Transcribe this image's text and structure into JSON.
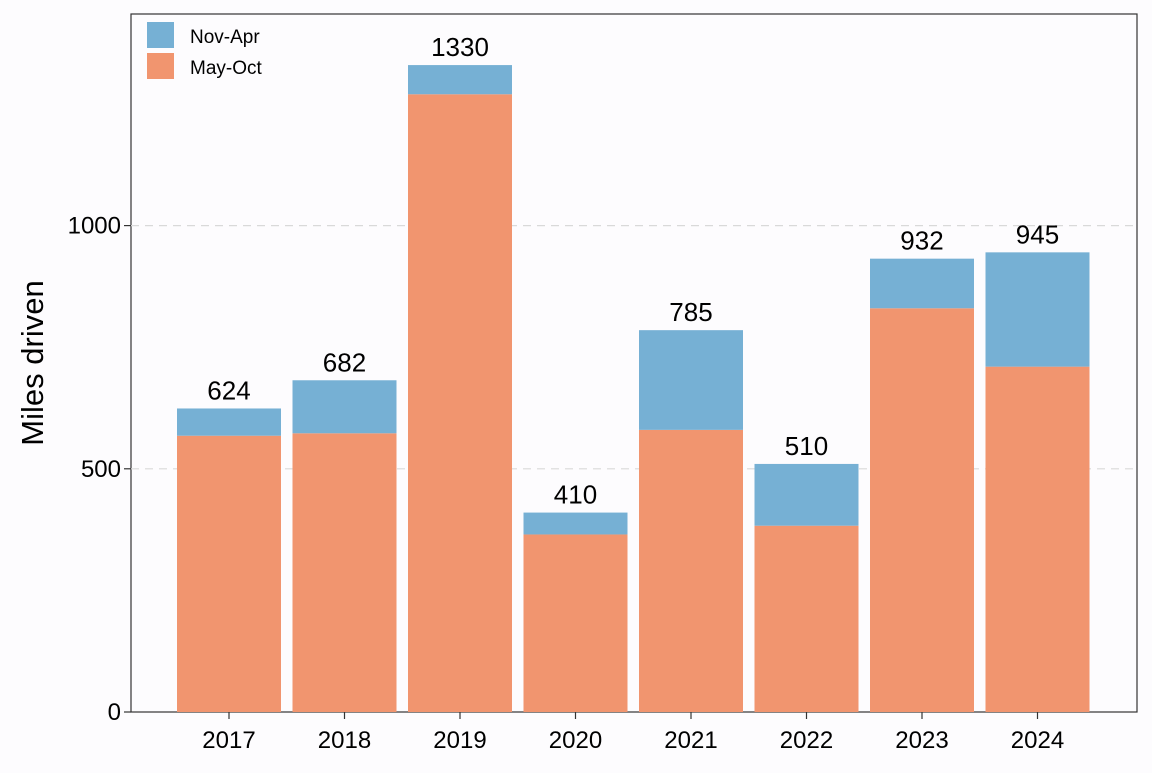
{
  "chart_data": {
    "type": "bar",
    "stacked": true,
    "categories": [
      "2017",
      "2018",
      "2019",
      "2020",
      "2021",
      "2022",
      "2023",
      "2024"
    ],
    "series": [
      {
        "name": "May-Oct",
        "color": "#f1956f",
        "values": [
          568,
          573,
          1270,
          365,
          580,
          383,
          830,
          710
        ]
      },
      {
        "name": "Nov-Apr",
        "color": "#76b0d4",
        "values": [
          56,
          109,
          60,
          45,
          205,
          127,
          102,
          235
        ]
      }
    ],
    "totals": [
      "624",
      "682",
      "1330",
      "410",
      "785",
      "510",
      "932",
      "945"
    ],
    "title": "",
    "xlabel": "",
    "ylabel": "Miles driven",
    "ylim": [
      0,
      1435
    ],
    "yticks": [
      0,
      500,
      1000
    ],
    "grid": "horizontal-dashed",
    "legend": {
      "position": "top-left",
      "entries": [
        {
          "label": "Nov-Apr",
          "color": "#76b0d4"
        },
        {
          "label": "May-Oct",
          "color": "#f1956f"
        }
      ]
    }
  }
}
